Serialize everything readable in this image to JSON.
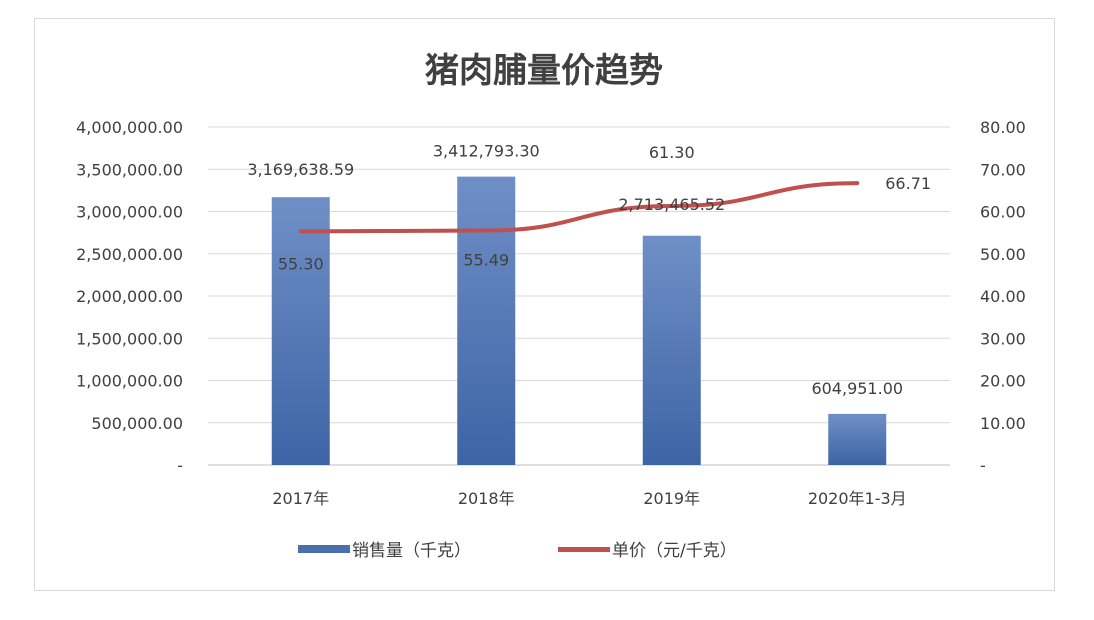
{
  "chart_data": {
    "type": "bar",
    "title": "猪肉脯量价趋势",
    "categories": [
      "2017年",
      "2018年",
      "2019年",
      "2020年1-3月"
    ],
    "series": [
      {
        "name": "销售量（千克）",
        "type": "bar",
        "axis": "left",
        "values": [
          3169638.59,
          3412793.3,
          2713465.52,
          604951.0
        ],
        "labels": [
          "3,169,638.59",
          "3,412,793.30",
          "2,713,465.52",
          "604,951.00"
        ],
        "color": "#4a6fae"
      },
      {
        "name": "单价（元/千克）",
        "type": "line",
        "axis": "right",
        "values": [
          55.3,
          55.49,
          61.3,
          66.71
        ],
        "labels": [
          "55.30",
          "55.49",
          "61.30",
          "66.71"
        ],
        "color": "#c0504d"
      }
    ],
    "y_left": {
      "ylim": [
        0,
        4000000
      ],
      "ticks": [
        "-",
        "500,000.00",
        "1,000,000.00",
        "1,500,000.00",
        "2,000,000.00",
        "2,500,000.00",
        "3,000,000.00",
        "3,500,000.00",
        "4,000,000.00"
      ]
    },
    "y_right": {
      "ylim": [
        0,
        80
      ],
      "ticks": [
        "-",
        "10.00",
        "20.00",
        "30.00",
        "40.00",
        "50.00",
        "60.00",
        "70.00",
        "80.00"
      ]
    },
    "grid": true,
    "legend": "bottom"
  }
}
